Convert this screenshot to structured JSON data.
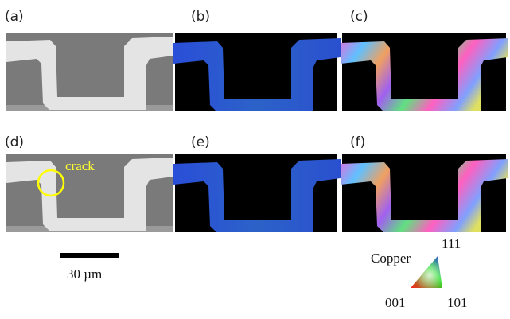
{
  "panels": {
    "labels": [
      "(a)",
      "(b)",
      "(c)",
      "(d)",
      "(e)",
      "(f)"
    ]
  },
  "annotation": "crack",
  "scale_bar": "30 µm",
  "legend": {
    "material": "Copper",
    "corners": [
      "111",
      "001",
      "101"
    ]
  }
}
